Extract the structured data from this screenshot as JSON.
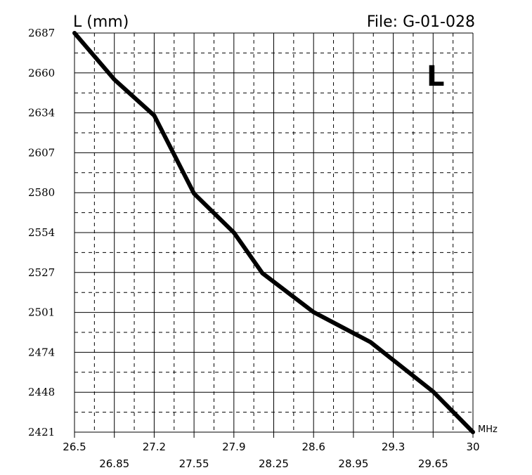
{
  "chart_data": {
    "type": "line",
    "ylabel": "L (mm)",
    "file_label": "File:  G-01-028",
    "big_letter": "L",
    "x_unit": "MHz",
    "x_ticks_top": [
      "26.5",
      "27.2",
      "27.9",
      "28.6",
      "29.3",
      "30"
    ],
    "x_ticks_bottom": [
      "26.85",
      "27.55",
      "28.25",
      "28.95",
      "29.65"
    ],
    "y_ticks": [
      "2421",
      "2448",
      "2474",
      "2501",
      "2527",
      "2554",
      "2580",
      "2607",
      "2634",
      "2660",
      "2687"
    ],
    "xlim": [
      26.5,
      30
    ],
    "ylim": [
      2421,
      2687
    ],
    "grid": true,
    "series": [
      {
        "color": "#000000",
        "x": [
          26.5,
          26.85,
          27.2,
          27.55,
          27.9,
          28.15,
          28.6,
          29.1,
          29.65,
          30.0
        ],
        "y": [
          2687,
          2656,
          2632,
          2580,
          2554,
          2527,
          2501,
          2481,
          2448,
          2421
        ]
      }
    ]
  }
}
